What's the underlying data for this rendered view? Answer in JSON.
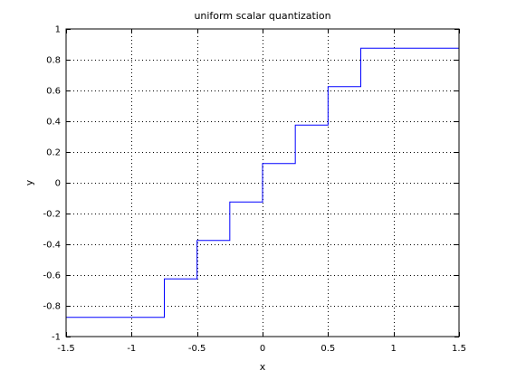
{
  "chart_data": {
    "type": "line",
    "title": "uniform scalar quantization",
    "xlabel": "x",
    "ylabel": "y",
    "xlim": [
      -1.5,
      1.5
    ],
    "ylim": [
      -1,
      1
    ],
    "xticks": [
      -1.5,
      -1,
      -0.5,
      0,
      0.5,
      1,
      1.5
    ],
    "xtick_labels": [
      "-1.5",
      "-1",
      "-0.5",
      "0",
      "0.5",
      "1",
      "1.5"
    ],
    "yticks": [
      -1,
      -0.8,
      -0.6,
      -0.4,
      -0.2,
      0,
      0.2,
      0.4,
      0.6,
      0.8,
      1
    ],
    "ytick_labels": [
      "-1",
      "-0.8",
      "-0.6",
      "-0.4",
      "-0.2",
      "0",
      "0.2",
      "0.4",
      "0.6",
      "0.8",
      "1"
    ],
    "grid": true,
    "grid_style": "dotted",
    "colors": {
      "line": "#0000ff",
      "axes": "#000000",
      "grid": "#000000"
    },
    "series": [
      {
        "step": "post",
        "x": [
          -1.5,
          -0.75,
          -0.5,
          -0.25,
          0,
          0.25,
          0.5,
          0.75
        ],
        "y": [
          -0.875,
          -0.625,
          -0.375,
          -0.125,
          0.125,
          0.375,
          0.625,
          0.875
        ]
      }
    ]
  }
}
